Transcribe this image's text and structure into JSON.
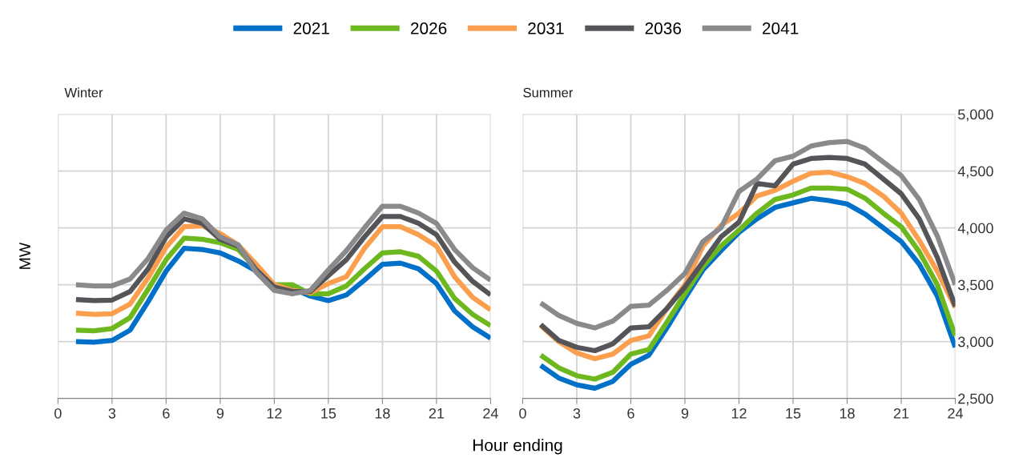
{
  "chart_data": [
    {
      "type": "line",
      "title": "Winter",
      "ylabel": "MW",
      "xlabel": "Hour ending",
      "legend": "top",
      "grid": true,
      "tick_labels": "x",
      "x": [
        1,
        2,
        3,
        4,
        5,
        6,
        7,
        8,
        9,
        10,
        11,
        12,
        13,
        14,
        15,
        16,
        17,
        18,
        19,
        20,
        21,
        22,
        23,
        24
      ],
      "xlim": [
        0,
        24
      ],
      "xticks": [
        0,
        3,
        6,
        9,
        12,
        15,
        18,
        21,
        24
      ],
      "ylim": [
        2500,
        5000
      ],
      "yticks": [
        2500,
        3000,
        3500,
        4000,
        4500,
        5000
      ],
      "series": [
        {
          "name": "2021",
          "color": "#0070c8",
          "values": [
            3000,
            2995,
            3010,
            3100,
            3350,
            3620,
            3820,
            3810,
            3780,
            3710,
            3620,
            3490,
            3470,
            3400,
            3360,
            3410,
            3540,
            3680,
            3690,
            3640,
            3510,
            3270,
            3130,
            3030
          ]
        },
        {
          "name": "2026",
          "color": "#6cb81e",
          "values": [
            3100,
            3095,
            3115,
            3210,
            3460,
            3720,
            3910,
            3900,
            3870,
            3810,
            3640,
            3500,
            3500,
            3420,
            3420,
            3490,
            3640,
            3780,
            3790,
            3750,
            3620,
            3380,
            3240,
            3140
          ]
        },
        {
          "name": "2031",
          "color": "#fb9f4f",
          "values": [
            3250,
            3240,
            3245,
            3330,
            3560,
            3830,
            4010,
            4020,
            3950,
            3850,
            3680,
            3500,
            3450,
            3430,
            3510,
            3570,
            3820,
            4010,
            4010,
            3940,
            3840,
            3570,
            3390,
            3280
          ]
        },
        {
          "name": "2036",
          "color": "#555559",
          "values": [
            3370,
            3360,
            3365,
            3440,
            3640,
            3920,
            4080,
            4040,
            3900,
            3840,
            3630,
            3480,
            3440,
            3440,
            3580,
            3720,
            3920,
            4100,
            4100,
            4040,
            3940,
            3700,
            3530,
            3410
          ]
        },
        {
          "name": "2041",
          "color": "#8a8a8c",
          "values": [
            3500,
            3490,
            3490,
            3550,
            3730,
            3980,
            4130,
            4080,
            3920,
            3850,
            3610,
            3450,
            3420,
            3450,
            3630,
            3800,
            4000,
            4190,
            4190,
            4130,
            4040,
            3810,
            3650,
            3540
          ]
        }
      ]
    },
    {
      "type": "line",
      "title": "Summer",
      "grid": true,
      "x": [
        1,
        2,
        3,
        4,
        5,
        6,
        7,
        8,
        9,
        10,
        11,
        12,
        13,
        14,
        15,
        16,
        17,
        18,
        19,
        20,
        21,
        22,
        23,
        24
      ],
      "xlim": [
        0,
        24
      ],
      "xticks": [
        0,
        3,
        6,
        9,
        12,
        15,
        18,
        21,
        24
      ],
      "ylim": [
        2500,
        5000
      ],
      "yticks": [
        {
          "value": 2500,
          "label": "2,500"
        },
        {
          "value": 3000,
          "label": "3,000"
        },
        {
          "value": 3500,
          "label": "3,500"
        },
        {
          "value": 4000,
          "label": "4,000"
        },
        {
          "value": 4500,
          "label": "4,500"
        },
        {
          "value": 5000,
          "label": "5,000"
        }
      ],
      "series": [
        {
          "name": "2021",
          "color": "#0070c8",
          "values": [
            2790,
            2680,
            2620,
            2590,
            2650,
            2800,
            2880,
            3120,
            3380,
            3630,
            3800,
            3960,
            4080,
            4180,
            4220,
            4260,
            4240,
            4210,
            4120,
            4000,
            3880,
            3680,
            3400,
            2950
          ]
        },
        {
          "name": "2026",
          "color": "#6cb81e",
          "values": [
            2880,
            2770,
            2700,
            2670,
            2730,
            2890,
            2930,
            3170,
            3420,
            3660,
            3840,
            3980,
            4130,
            4250,
            4290,
            4350,
            4350,
            4340,
            4260,
            4130,
            4010,
            3790,
            3500,
            3050
          ]
        },
        {
          "name": "2031",
          "color": "#fb9f4f",
          "values": [
            3140,
            3000,
            2900,
            2850,
            2890,
            3010,
            3050,
            3290,
            3500,
            3840,
            4020,
            4130,
            4280,
            4330,
            4410,
            4480,
            4490,
            4450,
            4390,
            4280,
            4130,
            3890,
            3620,
            3300
          ]
        },
        {
          "name": "2036",
          "color": "#555559",
          "values": [
            3150,
            3010,
            2950,
            2920,
            2980,
            3120,
            3130,
            3290,
            3480,
            3700,
            3920,
            4050,
            4390,
            4370,
            4560,
            4610,
            4620,
            4610,
            4560,
            4430,
            4300,
            4080,
            3740,
            3310
          ]
        },
        {
          "name": "2041",
          "color": "#8a8a8c",
          "values": [
            3340,
            3230,
            3160,
            3120,
            3180,
            3310,
            3320,
            3450,
            3600,
            3880,
            4000,
            4320,
            4430,
            4590,
            4630,
            4720,
            4750,
            4760,
            4700,
            4580,
            4460,
            4250,
            3930,
            3500
          ]
        }
      ]
    }
  ]
}
